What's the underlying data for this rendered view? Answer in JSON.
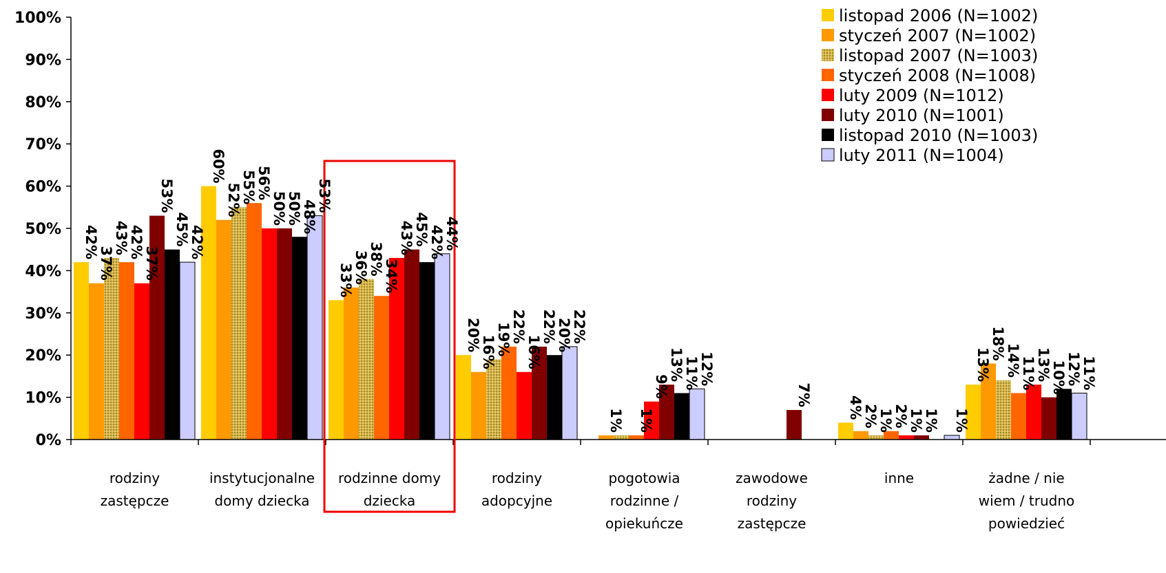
{
  "chart_data": {
    "type": "bar",
    "categories": [
      [
        "rodziny",
        "zastępcze"
      ],
      [
        "instytucjonalne",
        "domy dziecka"
      ],
      [
        "rodzinne domy",
        "dziecka"
      ],
      [
        "rodziny",
        "adopcyjne"
      ],
      [
        "pogotowia",
        "rodzinne /",
        "opiekuńcze"
      ],
      [
        "zawodowe",
        "rodziny",
        "zastępcze"
      ],
      [
        "inne"
      ],
      [
        "żadne / nie",
        "wiem / trudno",
        "powiedzieć"
      ]
    ],
    "yticks": [
      "0%",
      "10%",
      "20%",
      "30%",
      "40%",
      "50%",
      "60%",
      "70%",
      "80%",
      "90%",
      "100%"
    ],
    "ylim": [
      0,
      100
    ],
    "highlight_category": 2,
    "legend_position": "top-right",
    "series": [
      {
        "name": "listopad 2006 (N=1002)",
        "color": "#FFCC00",
        "pattern": false,
        "values": [
          42,
          60,
          33,
          20,
          null,
          null,
          4,
          13
        ],
        "labels": [
          "42%",
          "60%",
          "33%",
          "20%",
          "",
          "",
          "4%",
          "13%"
        ]
      },
      {
        "name": "styczeń 2007 (N=1002)",
        "color": "#FF9900",
        "pattern": false,
        "values": [
          37,
          52,
          36,
          16,
          1,
          null,
          2,
          18
        ],
        "labels": [
          "37%",
          "52%",
          "36%",
          "16%",
          "1%",
          "",
          "2%",
          "18%"
        ]
      },
      {
        "name": "listopad 2007 (N=1003)",
        "color": "#D4A017",
        "pattern": true,
        "values": [
          43,
          55,
          38,
          19,
          1,
          null,
          1,
          14
        ],
        "labels": [
          "43%",
          "55%",
          "38%",
          "19%",
          "",
          "",
          "1%",
          "14%"
        ]
      },
      {
        "name": "styczeń 2008 (N=1008)",
        "color": "#FF6600",
        "pattern": false,
        "values": [
          42,
          56,
          34,
          22,
          1,
          null,
          2,
          11
        ],
        "labels": [
          "42%",
          "56%",
          "34%",
          "22%",
          "1%",
          "",
          "2%",
          "11%"
        ]
      },
      {
        "name": "luty 2009 (N=1012)",
        "color": "#FF0000",
        "pattern": false,
        "values": [
          37,
          50,
          43,
          16,
          9,
          null,
          1,
          13
        ],
        "labels": [
          "37%",
          "50%",
          "43%",
          "16%",
          "9%",
          "",
          "1%",
          "13%"
        ]
      },
      {
        "name": "luty 2010 (N=1001)",
        "color": "#800000",
        "pattern": false,
        "values": [
          53,
          50,
          45,
          22,
          13,
          7,
          1,
          10
        ],
        "labels": [
          "53%",
          "50%",
          "45%",
          "22%",
          "13%",
          "7%",
          "1%",
          "10%"
        ]
      },
      {
        "name": "listopad 2010 (N=1003)",
        "color": "#000000",
        "pattern": false,
        "values": [
          45,
          48,
          42,
          20,
          11,
          null,
          null,
          12
        ],
        "labels": [
          "45%",
          "48%",
          "42%",
          "20%",
          "11%",
          "",
          "",
          "12%"
        ]
      },
      {
        "name": "luty 2011 (N=1004)",
        "color": "#CCCCFF",
        "pattern": false,
        "values": [
          42,
          53,
          44,
          22,
          12,
          null,
          1,
          11
        ],
        "labels": [
          "42%",
          "53%",
          "44%",
          "22%",
          "12%",
          "",
          "1%",
          "11%"
        ]
      }
    ]
  }
}
